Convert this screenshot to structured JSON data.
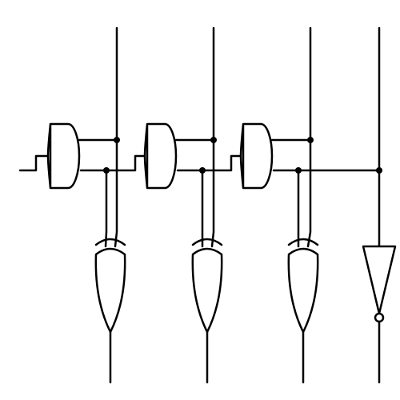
{
  "diagram": {
    "kind": "logic-circuit",
    "colors": {
      "line": "#000000",
      "background": "#ffffff"
    },
    "stages": [
      {
        "and_gate": "and-gate",
        "xor_gate": "xor-gate"
      },
      {
        "and_gate": "and-gate",
        "xor_gate": "xor-gate"
      },
      {
        "and_gate": "and-gate",
        "xor_gate": "xor-gate"
      }
    ],
    "final_gate": "not-gate",
    "labels": []
  }
}
